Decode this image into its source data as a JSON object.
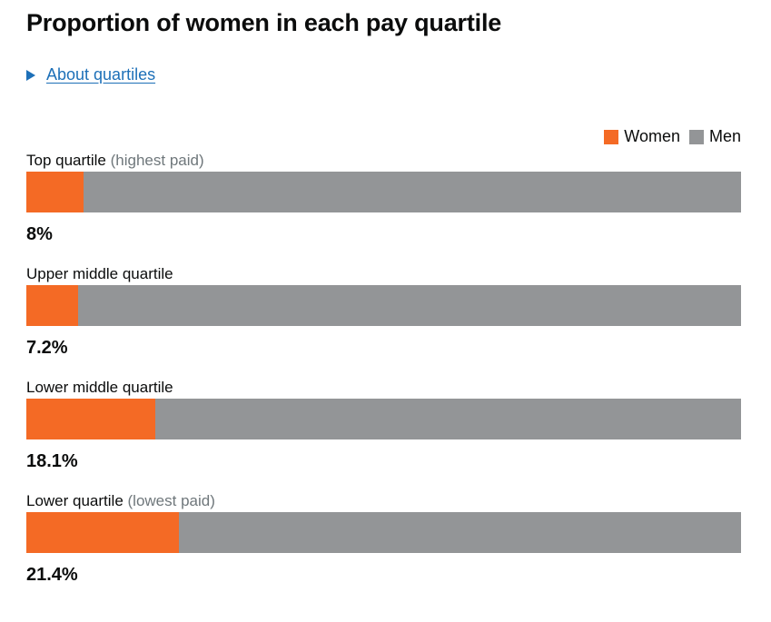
{
  "title": "Proportion of women in each pay quartile",
  "details": {
    "label": "About quartiles",
    "icon": "triangle-right-icon"
  },
  "colors": {
    "women": "#f46a25",
    "men": "#939597",
    "link": "#1d70b8",
    "muted": "#6f777b",
    "text": "#0b0c0c"
  },
  "chart_data": {
    "type": "bar",
    "title": "Proportion of women in each pay quartile",
    "legend": [
      "Women",
      "Men"
    ],
    "legend_position": "top-right",
    "ylim": [
      0,
      100
    ],
    "categories": [
      "Top quartile (highest paid)",
      "Upper middle quartile",
      "Lower middle quartile",
      "Lower quartile (lowest paid)"
    ],
    "series": [
      {
        "name": "Women",
        "values": [
          8,
          7.2,
          18.1,
          21.4
        ]
      },
      {
        "name": "Men",
        "values": [
          92,
          92.8,
          81.9,
          78.6
        ]
      }
    ],
    "quartiles": [
      {
        "label": "Top quartile",
        "sublabel": "(highest paid)",
        "women": 8,
        "display": "8%"
      },
      {
        "label": "Upper middle quartile",
        "sublabel": "",
        "women": 7.2,
        "display": "7.2%"
      },
      {
        "label": "Lower middle quartile",
        "sublabel": "",
        "women": 18.1,
        "display": "18.1%"
      },
      {
        "label": "Lower quartile",
        "sublabel": "(lowest paid)",
        "women": 21.4,
        "display": "21.4%"
      }
    ]
  }
}
